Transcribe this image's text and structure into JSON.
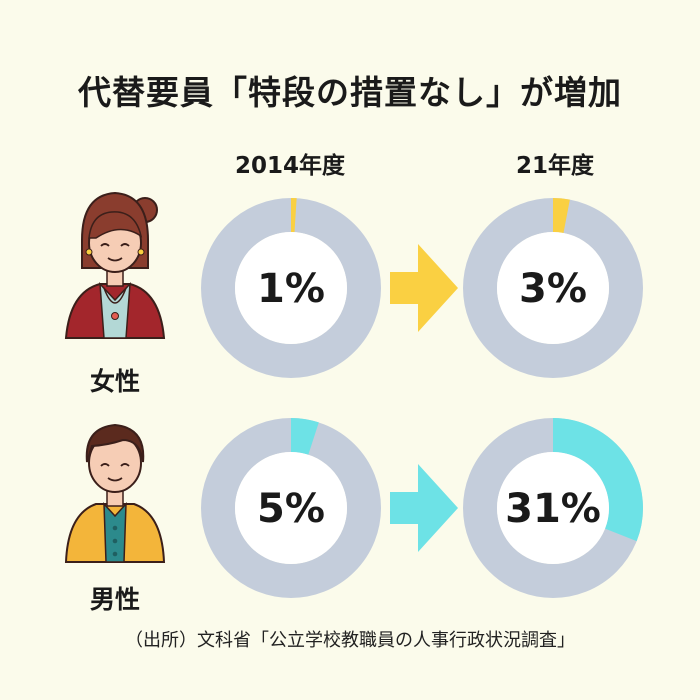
{
  "title": "代替要員「特段の措置なし」が増加",
  "columns": [
    "2014年度",
    "21年度"
  ],
  "rows": [
    {
      "label": "女性",
      "accent": "#fad042",
      "arrow": "#fad042",
      "values": [
        {
          "value": 1,
          "text": "1%"
        },
        {
          "value": 3,
          "text": "3%"
        }
      ]
    },
    {
      "label": "男性",
      "accent": "#6de2e6",
      "arrow": "#6de2e6",
      "values": [
        {
          "value": 5,
          "text": "5%"
        },
        {
          "value": 31,
          "text": "31%"
        }
      ]
    }
  ],
  "source": "（出所）文科省「公立学校教職員の人事行政状況調査」",
  "colors": {
    "ring_base": "#c4cddb",
    "background": "#fbfbeb"
  },
  "chart_data": [
    {
      "type": "pie",
      "series_label": "女性",
      "categories": [
        "2014年度",
        "21年度"
      ],
      "values": [
        1,
        3
      ],
      "unit": "%"
    },
    {
      "type": "pie",
      "series_label": "男性",
      "categories": [
        "2014年度",
        "21年度"
      ],
      "values": [
        5,
        31
      ],
      "unit": "%"
    }
  ]
}
